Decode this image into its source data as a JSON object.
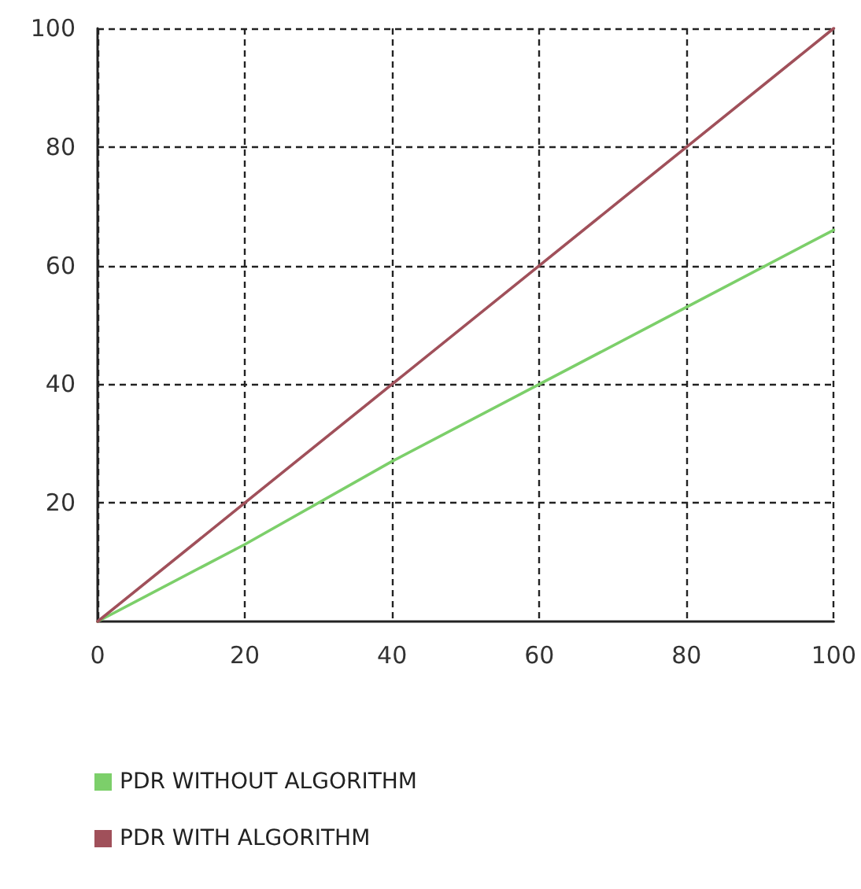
{
  "chart_data": {
    "type": "line",
    "x": [
      0,
      20,
      40,
      60,
      80,
      100
    ],
    "series": [
      {
        "name": "PDR WITHOUT ALGORITHM",
        "color": "#7ccf6a",
        "values": [
          0,
          13,
          27,
          40,
          53,
          66
        ]
      },
      {
        "name": "PDR WITH ALGORITHM",
        "color": "#a0505a",
        "values": [
          0,
          20,
          40,
          60,
          80,
          100
        ]
      }
    ],
    "xlim": [
      0,
      100
    ],
    "xticks": [
      0,
      20,
      40,
      60,
      80,
      100
    ],
    "ylim": [
      0,
      100
    ],
    "yticks": [
      20,
      40,
      60,
      80,
      100
    ],
    "grid": true,
    "legend": "bottom",
    "marker": "none",
    "line_style": "solid"
  }
}
